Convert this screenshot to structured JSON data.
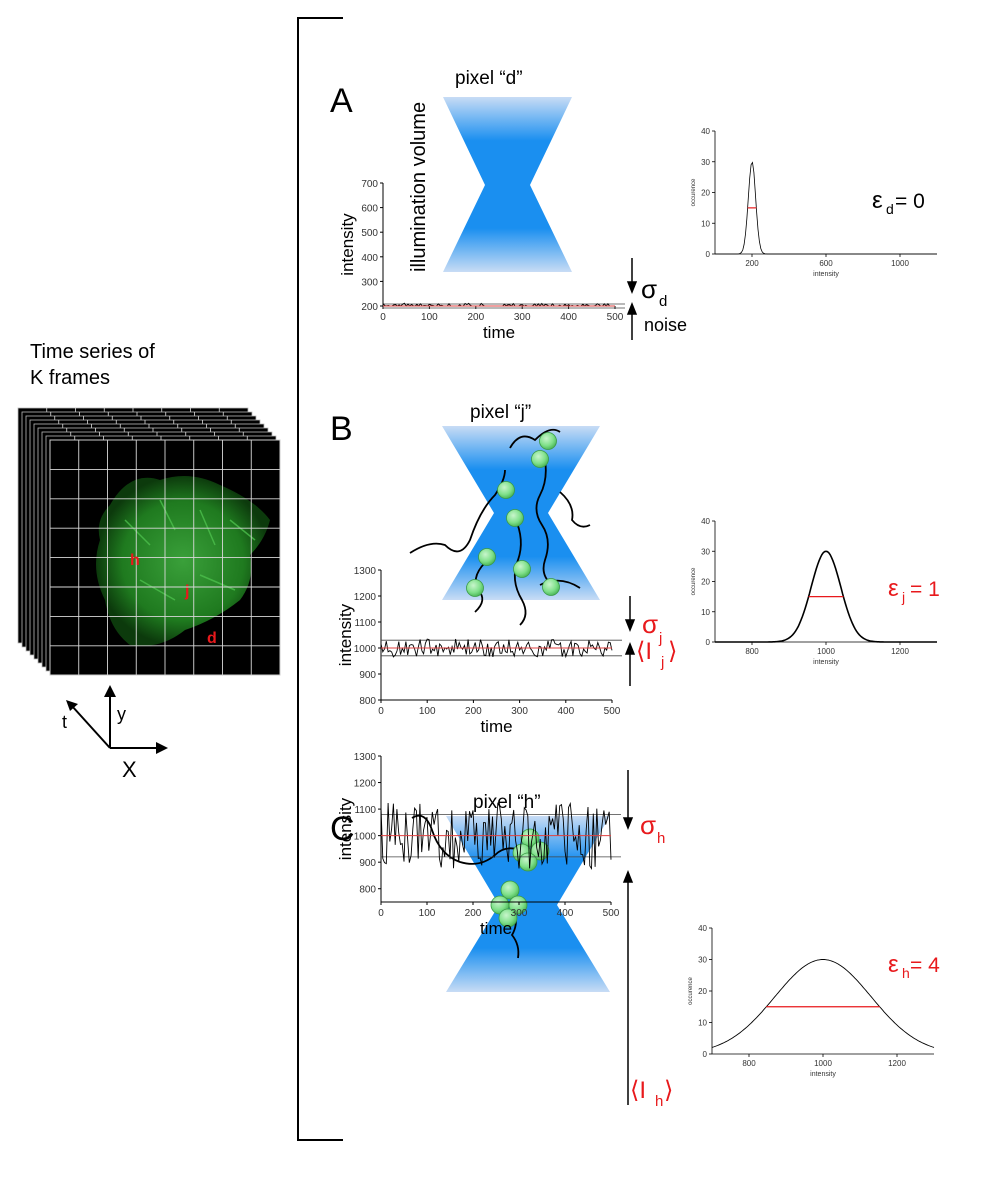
{
  "left_panel": {
    "title_line1": "Time series of",
    "title_line2": "K frames",
    "pixel_h": "h",
    "pixel_j": "j",
    "pixel_d": "d",
    "axis_t": "t",
    "axis_y": "y",
    "axis_x": "X",
    "colors": {
      "cell": "#2a8a2a",
      "pixel_label": "#e8191c",
      "grid": "#d8d8d8"
    }
  },
  "panel_a": {
    "letter": "A",
    "pixel_label": "pixel “d”",
    "volume_label": "illumination volume",
    "sigma": "σ",
    "sigma_sub": "d",
    "noise": "noise",
    "epsilon": "ε",
    "epsilon_sub": "d",
    "epsilon_val": "= 0"
  },
  "panel_b": {
    "letter": "B",
    "pixel_label": "pixel “j”",
    "sigma": "σ",
    "sigma_sub": "j",
    "mean_open": "⟨I",
    "mean_sub": "j",
    "mean_close": "⟩",
    "epsilon": "ε",
    "epsilon_sub": "j",
    "epsilon_val": "= 1"
  },
  "panel_c": {
    "letter": "C",
    "pixel_label": "pixel “h”",
    "sigma": "σ",
    "sigma_sub": "h",
    "mean_open": "⟨I",
    "mean_sub": "h",
    "mean_close": "⟩",
    "epsilon": "ε",
    "epsilon_sub": "h",
    "epsilon_val": " = 4"
  },
  "colors": {
    "beam": "#1a8ff0",
    "beam_light": "#c8dcf5",
    "particle": "#7fe08a",
    "red": "#e8191c",
    "mean_line": "#e04040"
  },
  "chart_data": [
    {
      "id": "trace_a",
      "type": "line",
      "title": "",
      "xlabel": "time",
      "ylabel": "intensity",
      "xlim": [
        0,
        500
      ],
      "ylim": [
        200,
        700
      ],
      "xticks": [
        0,
        100,
        200,
        300,
        400,
        500
      ],
      "yticks": [
        200,
        300,
        400,
        500,
        600,
        700
      ],
      "series": [
        {
          "name": "intensity",
          "mean": 200,
          "amplitude": 10
        }
      ],
      "mean_line": 200,
      "band": [
        192,
        208
      ]
    },
    {
      "id": "hist_a",
      "type": "line",
      "title": "",
      "xlabel": "intensity",
      "ylabel": "occurence",
      "xlim": [
        0,
        1200
      ],
      "ylim": [
        0,
        40
      ],
      "xticks": [
        200,
        600,
        1000
      ],
      "yticks": [
        0,
        10,
        20,
        30,
        40
      ],
      "series": [
        {
          "name": "occurence",
          "center": 200,
          "peak": 30,
          "width": 20
        }
      ],
      "fwhm_y": 15
    },
    {
      "id": "trace_b",
      "type": "line",
      "title": "",
      "xlabel": "time",
      "ylabel": "intensity",
      "xlim": [
        0,
        500
      ],
      "ylim": [
        800,
        1300
      ],
      "xticks": [
        0,
        100,
        200,
        300,
        400,
        500
      ],
      "yticks": [
        800,
        900,
        1000,
        1100,
        1200,
        1300
      ],
      "series": [
        {
          "name": "intensity",
          "mean": 1000,
          "amplitude": 30
        }
      ],
      "mean_line": 1000,
      "band": [
        970,
        1030
      ]
    },
    {
      "id": "hist_b",
      "type": "line",
      "title": "",
      "xlabel": "intensity",
      "ylabel": "occurence",
      "xlim": [
        700,
        1300
      ],
      "ylim": [
        0,
        40
      ],
      "xticks": [
        800,
        1000,
        1200
      ],
      "yticks": [
        0,
        10,
        20,
        30,
        40
      ],
      "series": [
        {
          "name": "occurence",
          "center": 1000,
          "peak": 30,
          "width": 40
        }
      ],
      "fwhm_y": 15
    },
    {
      "id": "trace_c",
      "type": "line",
      "title": "",
      "xlabel": "time",
      "ylabel": "intensity",
      "xlim": [
        0,
        500
      ],
      "ylim": [
        750,
        1300
      ],
      "xticks": [
        0,
        100,
        200,
        300,
        400,
        500
      ],
      "yticks": [
        800,
        900,
        1000,
        1100,
        1200,
        1300
      ],
      "series": [
        {
          "name": "intensity",
          "mean": 1000,
          "amplitude": 110
        }
      ],
      "mean_line": 1000,
      "band": [
        920,
        1080
      ]
    },
    {
      "id": "hist_c",
      "type": "line",
      "title": "",
      "xlabel": "intensity",
      "ylabel": "occurence",
      "xlim": [
        700,
        1300
      ],
      "ylim": [
        0,
        40
      ],
      "xticks": [
        800,
        1000,
        1200
      ],
      "yticks": [
        0,
        10,
        20,
        30,
        40
      ],
      "series": [
        {
          "name": "occurence",
          "center": 1000,
          "peak": 30,
          "width": 130
        }
      ],
      "fwhm_y": 15
    }
  ]
}
